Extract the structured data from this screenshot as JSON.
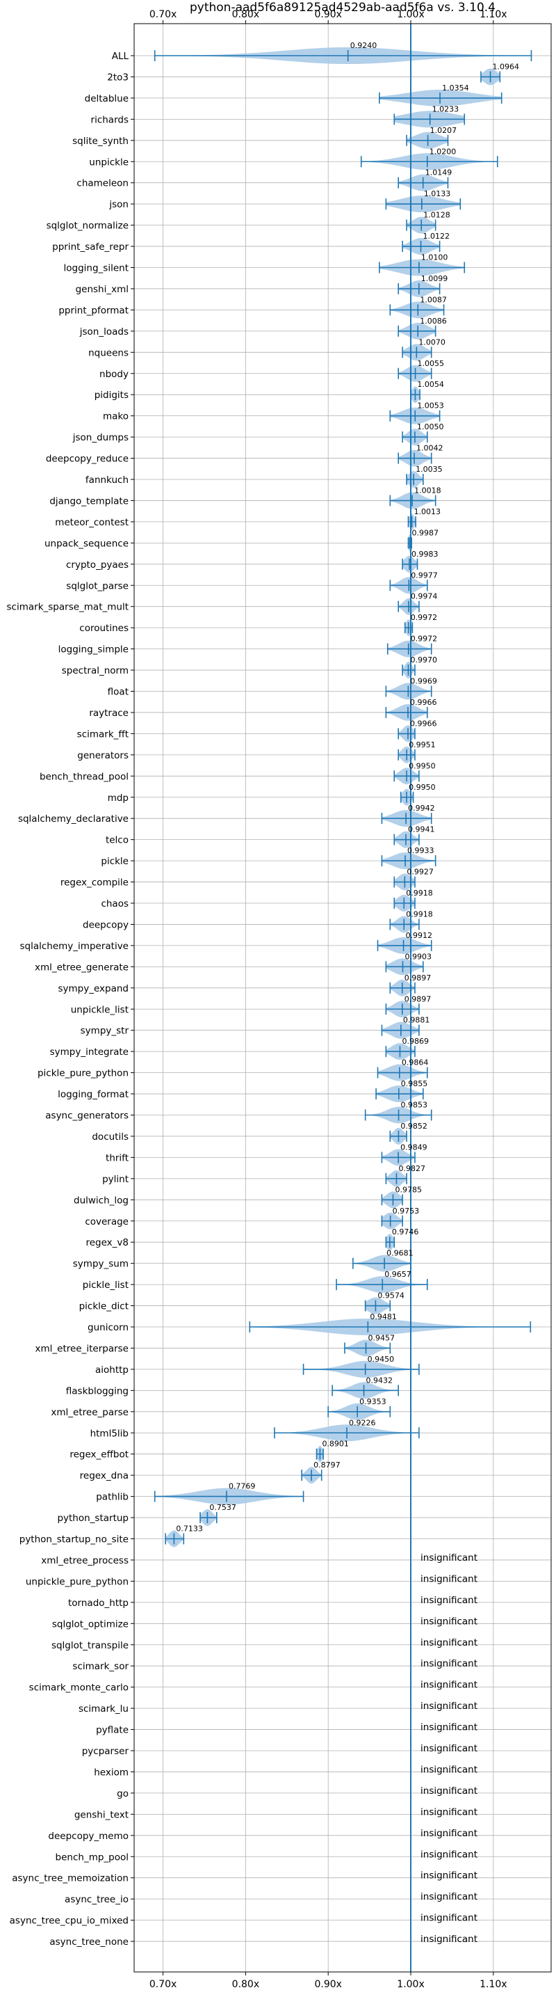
{
  "chart_data": {
    "type": "violin",
    "title": "python-aad5f6a89125ad4529ab-aad5f6a vs. 3.10.4",
    "xlabel": "",
    "ylabel": "",
    "xlim": [
      0.665,
      1.17
    ],
    "x_ticks": [
      0.7,
      0.8,
      0.9,
      1.0,
      1.1
    ],
    "x_tick_labels": [
      "0.70x",
      "0.80x",
      "0.90x",
      "1.00x",
      "1.10x"
    ],
    "reference_line": 1.0,
    "grid": true,
    "colors": {
      "violin": "#a6c8e6",
      "line": "#1f77b4",
      "grid": "#b0b0b0"
    },
    "insignificant_label": "insignificant",
    "benchmarks": [
      {
        "name": "ALL",
        "mean": 0.924,
        "label": "0.9240",
        "min": 0.69,
        "max": 1.146,
        "spread": 0.04
      },
      {
        "name": "2to3",
        "mean": 1.0964,
        "label": "1.0964",
        "min": 1.085,
        "max": 1.108,
        "spread": 0.008
      },
      {
        "name": "deltablue",
        "mean": 1.0354,
        "label": "1.0354",
        "min": 0.962,
        "max": 1.11,
        "spread": 0.04
      },
      {
        "name": "richards",
        "mean": 1.0233,
        "label": "1.0233",
        "min": 0.98,
        "max": 1.065,
        "spread": 0.03
      },
      {
        "name": "sqlite_synth",
        "mean": 1.0207,
        "label": "1.0207",
        "min": 0.995,
        "max": 1.045,
        "spread": 0.015
      },
      {
        "name": "unpickle",
        "mean": 1.02,
        "label": "1.0200",
        "min": 0.94,
        "max": 1.105,
        "spread": 0.03
      },
      {
        "name": "chameleon",
        "mean": 1.0149,
        "label": "1.0149",
        "min": 0.985,
        "max": 1.045,
        "spread": 0.015
      },
      {
        "name": "json",
        "mean": 1.0133,
        "label": "1.0133",
        "min": 0.97,
        "max": 1.06,
        "spread": 0.025
      },
      {
        "name": "sqlglot_normalize",
        "mean": 1.0128,
        "label": "1.0128",
        "min": 0.995,
        "max": 1.03,
        "spread": 0.01
      },
      {
        "name": "pprint_safe_repr",
        "mean": 1.0122,
        "label": "1.0122",
        "min": 0.99,
        "max": 1.035,
        "spread": 0.012
      },
      {
        "name": "logging_silent",
        "mean": 1.01,
        "label": "1.0100",
        "min": 0.962,
        "max": 1.065,
        "spread": 0.025
      },
      {
        "name": "genshi_xml",
        "mean": 1.0099,
        "label": "1.0099",
        "min": 0.985,
        "max": 1.035,
        "spread": 0.012
      },
      {
        "name": "pprint_pformat",
        "mean": 1.0087,
        "label": "1.0087",
        "min": 0.975,
        "max": 1.04,
        "spread": 0.015
      },
      {
        "name": "json_loads",
        "mean": 1.0086,
        "label": "1.0086",
        "min": 0.985,
        "max": 1.03,
        "spread": 0.012
      },
      {
        "name": "nqueens",
        "mean": 1.007,
        "label": "1.0070",
        "min": 0.99,
        "max": 1.025,
        "spread": 0.01
      },
      {
        "name": "nbody",
        "mean": 1.0055,
        "label": "1.0055",
        "min": 0.985,
        "max": 1.025,
        "spread": 0.01
      },
      {
        "name": "pidigits",
        "mean": 1.0054,
        "label": "1.0054",
        "min": 1.0,
        "max": 1.011,
        "spread": 0.004
      },
      {
        "name": "mako",
        "mean": 1.0053,
        "label": "1.0053",
        "min": 0.975,
        "max": 1.035,
        "spread": 0.015
      },
      {
        "name": "json_dumps",
        "mean": 1.005,
        "label": "1.0050",
        "min": 0.99,
        "max": 1.02,
        "spread": 0.008
      },
      {
        "name": "deepcopy_reduce",
        "mean": 1.0042,
        "label": "1.0042",
        "min": 0.985,
        "max": 1.025,
        "spread": 0.01
      },
      {
        "name": "fannkuch",
        "mean": 1.0035,
        "label": "1.0035",
        "min": 0.995,
        "max": 1.015,
        "spread": 0.006
      },
      {
        "name": "django_template",
        "mean": 1.0018,
        "label": "1.0018",
        "min": 0.975,
        "max": 1.03,
        "spread": 0.012
      },
      {
        "name": "meteor_contest",
        "mean": 1.0013,
        "label": "1.0013",
        "min": 0.997,
        "max": 1.006,
        "spread": 0.003
      },
      {
        "name": "unpack_sequence",
        "mean": 0.9987,
        "label": "0.9987",
        "min": 0.997,
        "max": 1.001,
        "spread": 0.002
      },
      {
        "name": "crypto_pyaes",
        "mean": 0.9983,
        "label": "0.9983",
        "min": 0.99,
        "max": 1.008,
        "spread": 0.006
      },
      {
        "name": "sqlglot_parse",
        "mean": 0.9977,
        "label": "0.9977",
        "min": 0.975,
        "max": 1.02,
        "spread": 0.01
      },
      {
        "name": "scimark_sparse_mat_mult",
        "mean": 0.9974,
        "label": "0.9974",
        "min": 0.985,
        "max": 1.01,
        "spread": 0.006
      },
      {
        "name": "coroutines",
        "mean": 0.9972,
        "label": "0.9972",
        "min": 0.993,
        "max": 1.002,
        "spread": 0.003
      },
      {
        "name": "logging_simple",
        "mean": 0.9972,
        "label": "0.9972",
        "min": 0.972,
        "max": 1.025,
        "spread": 0.012
      },
      {
        "name": "spectral_norm",
        "mean": 0.997,
        "label": "0.9970",
        "min": 0.99,
        "max": 1.005,
        "spread": 0.004
      },
      {
        "name": "float",
        "mean": 0.9969,
        "label": "0.9969",
        "min": 0.97,
        "max": 1.025,
        "spread": 0.012
      },
      {
        "name": "raytrace",
        "mean": 0.9966,
        "label": "0.9966",
        "min": 0.97,
        "max": 1.02,
        "spread": 0.012
      },
      {
        "name": "scimark_fft",
        "mean": 0.9966,
        "label": "0.9966",
        "min": 0.985,
        "max": 1.005,
        "spread": 0.006
      },
      {
        "name": "generators",
        "mean": 0.9951,
        "label": "0.9951",
        "min": 0.985,
        "max": 1.005,
        "spread": 0.006
      },
      {
        "name": "bench_thread_pool",
        "mean": 0.995,
        "label": "0.9950",
        "min": 0.98,
        "max": 1.01,
        "spread": 0.008
      },
      {
        "name": "mdp",
        "mean": 0.995,
        "label": "0.9950",
        "min": 0.988,
        "max": 1.003,
        "spread": 0.005
      },
      {
        "name": "sqlalchemy_declarative",
        "mean": 0.9942,
        "label": "0.9942",
        "min": 0.965,
        "max": 1.025,
        "spread": 0.015
      },
      {
        "name": "telco",
        "mean": 0.9941,
        "label": "0.9941",
        "min": 0.98,
        "max": 1.01,
        "spread": 0.008
      },
      {
        "name": "pickle",
        "mean": 0.9933,
        "label": "0.9933",
        "min": 0.965,
        "max": 1.03,
        "spread": 0.015
      },
      {
        "name": "regex_compile",
        "mean": 0.9927,
        "label": "0.9927",
        "min": 0.98,
        "max": 1.005,
        "spread": 0.008
      },
      {
        "name": "chaos",
        "mean": 0.9918,
        "label": "0.9918",
        "min": 0.98,
        "max": 1.005,
        "spread": 0.008
      },
      {
        "name": "deepcopy",
        "mean": 0.9918,
        "label": "0.9918",
        "min": 0.975,
        "max": 1.01,
        "spread": 0.008
      },
      {
        "name": "sqlalchemy_imperative",
        "mean": 0.9912,
        "label": "0.9912",
        "min": 0.96,
        "max": 1.025,
        "spread": 0.015
      },
      {
        "name": "xml_etree_generate",
        "mean": 0.9903,
        "label": "0.9903",
        "min": 0.97,
        "max": 1.015,
        "spread": 0.012
      },
      {
        "name": "sympy_expand",
        "mean": 0.9897,
        "label": "0.9897",
        "min": 0.975,
        "max": 1.005,
        "spread": 0.008
      },
      {
        "name": "unpickle_list",
        "mean": 0.9897,
        "label": "0.9897",
        "min": 0.97,
        "max": 1.01,
        "spread": 0.01
      },
      {
        "name": "sympy_str",
        "mean": 0.9881,
        "label": "0.9881",
        "min": 0.965,
        "max": 1.01,
        "spread": 0.012
      },
      {
        "name": "sympy_integrate",
        "mean": 0.9869,
        "label": "0.9869",
        "min": 0.97,
        "max": 1.005,
        "spread": 0.01
      },
      {
        "name": "pickle_pure_python",
        "mean": 0.9864,
        "label": "0.9864",
        "min": 0.96,
        "max": 1.02,
        "spread": 0.014
      },
      {
        "name": "logging_format",
        "mean": 0.9855,
        "label": "0.9855",
        "min": 0.958,
        "max": 1.015,
        "spread": 0.014
      },
      {
        "name": "async_generators",
        "mean": 0.9853,
        "label": "0.9853",
        "min": 0.945,
        "max": 1.025,
        "spread": 0.014
      },
      {
        "name": "docutils",
        "mean": 0.9852,
        "label": "0.9852",
        "min": 0.975,
        "max": 0.995,
        "spread": 0.006
      },
      {
        "name": "thrift",
        "mean": 0.9849,
        "label": "0.9849",
        "min": 0.965,
        "max": 1.005,
        "spread": 0.01
      },
      {
        "name": "pylint",
        "mean": 0.9827,
        "label": "0.9827",
        "min": 0.97,
        "max": 0.995,
        "spread": 0.007
      },
      {
        "name": "dulwich_log",
        "mean": 0.9785,
        "label": "0.9785",
        "min": 0.965,
        "max": 0.99,
        "spread": 0.008
      },
      {
        "name": "coverage",
        "mean": 0.9753,
        "label": "0.9753",
        "min": 0.965,
        "max": 0.99,
        "spread": 0.008
      },
      {
        "name": "regex_v8",
        "mean": 0.9746,
        "label": "0.9746",
        "min": 0.97,
        "max": 0.98,
        "spread": 0.004
      },
      {
        "name": "sympy_sum",
        "mean": 0.9681,
        "label": "0.9681",
        "min": 0.93,
        "max": 1.0,
        "spread": 0.015
      },
      {
        "name": "pickle_list",
        "mean": 0.9657,
        "label": "0.9657",
        "min": 0.91,
        "max": 1.02,
        "spread": 0.018
      },
      {
        "name": "pickle_dict",
        "mean": 0.9574,
        "label": "0.9574",
        "min": 0.945,
        "max": 0.975,
        "spread": 0.01
      },
      {
        "name": "gunicorn",
        "mean": 0.9481,
        "label": "0.9481",
        "min": 0.805,
        "max": 1.145,
        "spread": 0.03
      },
      {
        "name": "xml_etree_iterparse",
        "mean": 0.9457,
        "label": "0.9457",
        "min": 0.92,
        "max": 0.975,
        "spread": 0.012
      },
      {
        "name": "aiohttp",
        "mean": 0.945,
        "label": "0.9450",
        "min": 0.87,
        "max": 1.01,
        "spread": 0.016
      },
      {
        "name": "flaskblogging",
        "mean": 0.9432,
        "label": "0.9432",
        "min": 0.905,
        "max": 0.985,
        "spread": 0.014
      },
      {
        "name": "xml_etree_parse",
        "mean": 0.9353,
        "label": "0.9353",
        "min": 0.9,
        "max": 0.975,
        "spread": 0.014
      },
      {
        "name": "html5lib",
        "mean": 0.9226,
        "label": "0.9226",
        "min": 0.835,
        "max": 1.01,
        "spread": 0.03
      },
      {
        "name": "regex_effbot",
        "mean": 0.8901,
        "label": "0.8901",
        "min": 0.886,
        "max": 0.894,
        "spread": 0.003
      },
      {
        "name": "regex_dna",
        "mean": 0.8797,
        "label": "0.8797",
        "min": 0.868,
        "max": 0.892,
        "spread": 0.006
      },
      {
        "name": "pathlib",
        "mean": 0.7769,
        "label": "0.7769",
        "min": 0.69,
        "max": 0.87,
        "spread": 0.035
      },
      {
        "name": "python_startup",
        "mean": 0.7537,
        "label": "0.7537",
        "min": 0.745,
        "max": 0.765,
        "spread": 0.006
      },
      {
        "name": "python_startup_no_site",
        "mean": 0.7133,
        "label": "0.7133",
        "min": 0.703,
        "max": 0.725,
        "spread": 0.006
      },
      {
        "name": "xml_etree_process",
        "insignificant": true
      },
      {
        "name": "unpickle_pure_python",
        "insignificant": true
      },
      {
        "name": "tornado_http",
        "insignificant": true
      },
      {
        "name": "sqlglot_optimize",
        "insignificant": true
      },
      {
        "name": "sqlglot_transpile",
        "insignificant": true
      },
      {
        "name": "scimark_sor",
        "insignificant": true
      },
      {
        "name": "scimark_monte_carlo",
        "insignificant": true
      },
      {
        "name": "scimark_lu",
        "insignificant": true
      },
      {
        "name": "pyflate",
        "insignificant": true
      },
      {
        "name": "pycparser",
        "insignificant": true
      },
      {
        "name": "hexiom",
        "insignificant": true
      },
      {
        "name": "go",
        "insignificant": true
      },
      {
        "name": "genshi_text",
        "insignificant": true
      },
      {
        "name": "deepcopy_memo",
        "insignificant": true
      },
      {
        "name": "bench_mp_pool",
        "insignificant": true
      },
      {
        "name": "async_tree_memoization",
        "insignificant": true
      },
      {
        "name": "async_tree_io",
        "insignificant": true
      },
      {
        "name": "async_tree_cpu_io_mixed",
        "insignificant": true
      },
      {
        "name": "async_tree_none",
        "insignificant": true
      }
    ]
  }
}
